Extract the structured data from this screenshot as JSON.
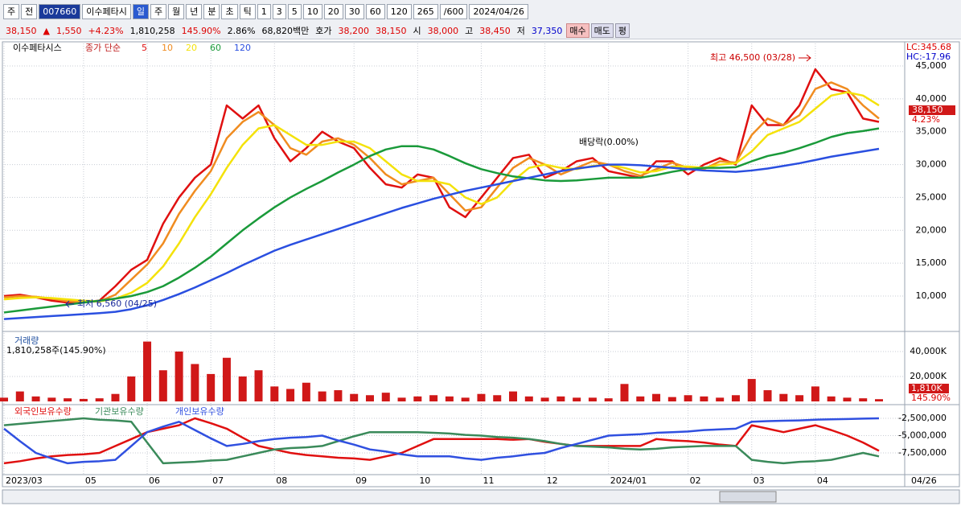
{
  "toolbar": [
    "주",
    "전",
    "007660",
    "이수페타시",
    "일",
    "주",
    "월",
    "년",
    "분",
    "초",
    "틱",
    "1",
    "3",
    "5",
    "10",
    "20",
    "30",
    "60",
    "120",
    "265",
    "/600",
    "2024/04/26"
  ],
  "quote": [
    "38,150",
    "▲",
    "1,550",
    "+4.23%",
    "1,810,258",
    "145.90%",
    "2.86%",
    "68,820백만",
    "호가",
    "38,200",
    "38,150",
    "시",
    "38,000",
    "고",
    "38,450",
    "저",
    "37,350",
    "매수",
    "매도",
    "평"
  ],
  "chart_data": [
    {
      "type": "line",
      "title": "이수페타시스",
      "legend_title": "종가 단순",
      "ylim": [
        4860,
        47450
      ],
      "yticks": [
        {
          "value": 10000,
          "label": "10,000"
        },
        {
          "value": 15000,
          "label": "15,000"
        },
        {
          "value": 20000,
          "label": "20,000"
        },
        {
          "value": 25000,
          "label": "25,000"
        },
        {
          "value": 30000,
          "label": "30,000"
        },
        {
          "value": 35000,
          "label": "35,000"
        },
        {
          "value": 40000,
          "label": "40,000"
        },
        {
          "value": 45000,
          "label": "45,000"
        }
      ],
      "grid": true,
      "corner_labels": [
        "LC:345.68",
        "HC:-17.96"
      ],
      "last_labels": [
        "38,150",
        "4.23%"
      ],
      "annotations": [
        "최고 46,500 (03/28)",
        "최저 6,560 (04/25)",
        "배당락(0.00%)"
      ],
      "series": [
        {
          "name": "5",
          "color": "#e01010",
          "values": [
            10000,
            10200,
            9800,
            9300,
            9000,
            9100,
            9300,
            11500,
            14000,
            15500,
            21000,
            25000,
            28000,
            30000,
            39000,
            37000,
            39000,
            34000,
            30500,
            32500,
            35000,
            33500,
            32500,
            29500,
            27000,
            26500,
            28500,
            28000,
            23500,
            22000,
            25000,
            28000,
            31000,
            31500,
            28000,
            29000,
            30500,
            31000,
            29000,
            28500,
            28000,
            30500,
            30500,
            28500,
            30000,
            31000,
            30000,
            39000,
            36000,
            36000,
            39000,
            44500,
            41500,
            41000,
            37000,
            36500
          ]
        },
        {
          "name": "10",
          "color": "#f08c20",
          "values": [
            9800,
            10000,
            9900,
            9600,
            9200,
            9100,
            9200,
            10200,
            12500,
            14800,
            18000,
            22500,
            26000,
            29000,
            34000,
            36500,
            38000,
            36000,
            32500,
            31500,
            33500,
            34000,
            33000,
            31000,
            28500,
            27000,
            27500,
            28000,
            25500,
            23000,
            23500,
            26500,
            29500,
            31000,
            30000,
            28500,
            29500,
            30500,
            30000,
            29000,
            28300,
            29300,
            30300,
            29500,
            29300,
            30500,
            30300,
            34500,
            37000,
            36000,
            37500,
            41500,
            42500,
            41500,
            39000,
            37000
          ]
        },
        {
          "name": "20",
          "color": "#f4e20a",
          "values": [
            9500,
            9700,
            9800,
            9700,
            9500,
            9300,
            9200,
            9600,
            10500,
            12000,
            14500,
            18000,
            22000,
            25500,
            29500,
            33000,
            35500,
            36000,
            34500,
            33000,
            33000,
            33500,
            33500,
            32500,
            30500,
            28500,
            27500,
            27500,
            27000,
            25000,
            24000,
            25000,
            27500,
            29500,
            30000,
            29500,
            29300,
            29800,
            30000,
            29500,
            28800,
            29000,
            29700,
            29700,
            29500,
            30000,
            30200,
            32000,
            34500,
            35500,
            36500,
            38500,
            40500,
            41000,
            40500,
            39000
          ]
        },
        {
          "name": "60",
          "color": "#1a9a3a",
          "values": [
            7500,
            7800,
            8100,
            8400,
            8700,
            9000,
            9300,
            9600,
            10000,
            10600,
            11500,
            12800,
            14300,
            16000,
            18000,
            20000,
            21800,
            23500,
            25000,
            26300,
            27500,
            28800,
            30000,
            31300,
            32300,
            32800,
            32800,
            32300,
            31300,
            30200,
            29300,
            28700,
            28200,
            27900,
            27600,
            27500,
            27600,
            27800,
            28000,
            28000,
            28000,
            28400,
            28900,
            29300,
            29500,
            29500,
            29600,
            30500,
            31300,
            31800,
            32500,
            33300,
            34200,
            34800,
            35100,
            35500
          ]
        },
        {
          "name": "120",
          "color": "#2a4fe0",
          "values": [
            6500,
            6650,
            6800,
            6950,
            7100,
            7250,
            7400,
            7600,
            8000,
            8600,
            9400,
            10300,
            11300,
            12400,
            13500,
            14700,
            15800,
            16900,
            17800,
            18600,
            19400,
            20200,
            21000,
            21800,
            22600,
            23400,
            24100,
            24800,
            25400,
            26000,
            26500,
            27000,
            27500,
            28000,
            28500,
            29000,
            29400,
            29700,
            30000,
            30000,
            29900,
            29700,
            29500,
            29300,
            29100,
            29000,
            28900,
            29100,
            29400,
            29800,
            30200,
            30700,
            31200,
            31600,
            32000,
            32400
          ]
        }
      ]
    },
    {
      "type": "bar",
      "title": "거래량",
      "subtitle": "1,810,258주(145.90%)",
      "ylim": [
        0,
        53550
      ],
      "color": "#d01818",
      "yticks": [
        {
          "value": 20000,
          "label": "20,000K"
        },
        {
          "value": 40000,
          "label": "40,000K"
        }
      ],
      "last_labels": [
        "1,810K",
        "145.90%"
      ],
      "values": [
        3000,
        8000,
        4000,
        3000,
        2500,
        2000,
        2500,
        6000,
        20000,
        48000,
        25000,
        40000,
        30000,
        22000,
        35000,
        20000,
        25000,
        12000,
        10000,
        15000,
        8000,
        9000,
        6000,
        5000,
        7000,
        3000,
        4000,
        5000,
        4000,
        3000,
        6000,
        5000,
        8000,
        4000,
        3000,
        4000,
        3000,
        3000,
        2500,
        14000,
        4000,
        6000,
        3500,
        5000,
        4000,
        3000,
        5000,
        18000,
        9000,
        6000,
        5000,
        12000,
        4000,
        3000,
        2500,
        1810
      ]
    },
    {
      "type": "line",
      "ylim": [
        -10640000,
        -872000
      ],
      "yticks": [
        {
          "value": -2500000,
          "label": "-2,500,000"
        },
        {
          "value": -5000000,
          "label": "-5,000,000"
        },
        {
          "value": -7500000,
          "label": "-7,500,000"
        }
      ],
      "categories": [
        "2023/03",
        null,
        null,
        null,
        null,
        "05",
        null,
        null,
        null,
        "06",
        null,
        null,
        null,
        "07",
        null,
        null,
        null,
        "08",
        null,
        null,
        null,
        null,
        "09",
        null,
        null,
        null,
        "10",
        null,
        null,
        null,
        "11",
        null,
        null,
        null,
        "12",
        null,
        null,
        null,
        "2024/01",
        null,
        null,
        null,
        null,
        "02",
        null,
        null,
        null,
        "03",
        null,
        null,
        null,
        "04",
        null,
        null,
        null,
        null
      ],
      "current_date": "04/26",
      "series": [
        {
          "name": "외국인보유수량",
          "color": "#e01010",
          "values": [
            -9000000,
            -8700000,
            -8300000,
            -8000000,
            -7800000,
            -7700000,
            -7500000,
            -6500000,
            -5500000,
            -4500000,
            -4000000,
            -3500000,
            -2500000,
            -3200000,
            -4000000,
            -5300000,
            -6500000,
            -7000000,
            -7500000,
            -7800000,
            -8000000,
            -8200000,
            -8300000,
            -8500000,
            -8000000,
            -7500000,
            -6500000,
            -5500000,
            -5500000,
            -5500000,
            -5500000,
            -5500000,
            -5600000,
            -5500000,
            -5900000,
            -6200000,
            -6500000,
            -6500000,
            -6500000,
            -6500000,
            -6500000,
            -5500000,
            -5700000,
            -5800000,
            -6000000,
            -6300000,
            -6500000,
            -3500000,
            -4000000,
            -4500000,
            -4000000,
            -3500000,
            -4200000,
            -5000000,
            -6000000,
            -7200000
          ]
        },
        {
          "name": "기관보유수량",
          "color": "#3a8a5a",
          "values": [
            -3500000,
            -3300000,
            -3100000,
            -2900000,
            -2700000,
            -2500000,
            -2700000,
            -2800000,
            -3000000,
            -6000000,
            -9000000,
            -8900000,
            -8800000,
            -8600000,
            -8500000,
            -8000000,
            -7500000,
            -7000000,
            -6800000,
            -6700000,
            -6500000,
            -5800000,
            -5100000,
            -4500000,
            -4500000,
            -4500000,
            -4500000,
            -4600000,
            -4700000,
            -4900000,
            -5000000,
            -5200000,
            -5300000,
            -5500000,
            -5800000,
            -6200000,
            -6500000,
            -6600000,
            -6700000,
            -6900000,
            -7000000,
            -6900000,
            -6700000,
            -6600000,
            -6500000,
            -6500000,
            -6500000,
            -8500000,
            -8800000,
            -9000000,
            -8800000,
            -8700000,
            -8500000,
            -8000000,
            -7500000,
            -8000000
          ]
        },
        {
          "name": "개인보유수량",
          "color": "#3050e0",
          "values": [
            -4000000,
            -5800000,
            -7500000,
            -8300000,
            -9000000,
            -8800000,
            -8700000,
            -8500000,
            -6500000,
            -4500000,
            -3700000,
            -3000000,
            -4200000,
            -5400000,
            -6500000,
            -6200000,
            -5800000,
            -5500000,
            -5300000,
            -5200000,
            -5000000,
            -5700000,
            -6300000,
            -7000000,
            -7300000,
            -7700000,
            -8000000,
            -8000000,
            -8000000,
            -8300000,
            -8500000,
            -8200000,
            -8000000,
            -7700000,
            -7500000,
            -6800000,
            -6200000,
            -5600000,
            -5000000,
            -4900000,
            -4800000,
            -4600000,
            -4500000,
            -4400000,
            -4200000,
            -4100000,
            -4000000,
            -3000000,
            -2900000,
            -2850000,
            -2800000,
            -2700000,
            -2650000,
            -2600000,
            -2550000,
            -2500000
          ]
        }
      ]
    }
  ]
}
